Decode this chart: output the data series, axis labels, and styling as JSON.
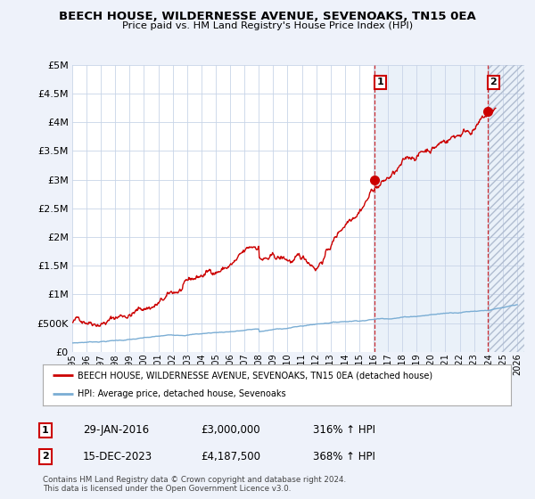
{
  "title": "BEECH HOUSE, WILDERNESSE AVENUE, SEVENOAKS, TN15 0EA",
  "subtitle": "Price paid vs. HM Land Registry's House Price Index (HPI)",
  "ytick_values": [
    0,
    500000,
    1000000,
    1500000,
    2000000,
    2500000,
    3000000,
    3500000,
    4000000,
    4500000,
    5000000
  ],
  "ylim": [
    0,
    5000000
  ],
  "xlim_start": 1995.0,
  "xlim_end": 2026.5,
  "bg_color": "#eef2fa",
  "plot_bg_color": "#ffffff",
  "grid_color": "#c8d4e8",
  "red_color": "#cc0000",
  "blue_color": "#7aadd4",
  "sale1_x": 2016.08,
  "sale1_y": 3000000,
  "sale2_x": 2023.96,
  "sale2_y": 4187500,
  "legend_label1": "BEECH HOUSE, WILDERNESSE AVENUE, SEVENOAKS, TN15 0EA (detached house)",
  "legend_label2": "HPI: Average price, detached house, Sevenoaks",
  "annotation1": "29-JAN-2016",
  "annotation1_price": "£3,000,000",
  "annotation1_hpi": "316% ↑ HPI",
  "annotation2": "15-DEC-2023",
  "annotation2_price": "£4,187,500",
  "annotation2_hpi": "368% ↑ HPI",
  "footer": "Contains HM Land Registry data © Crown copyright and database right 2024.\nThis data is licensed under the Open Government Licence v3.0."
}
